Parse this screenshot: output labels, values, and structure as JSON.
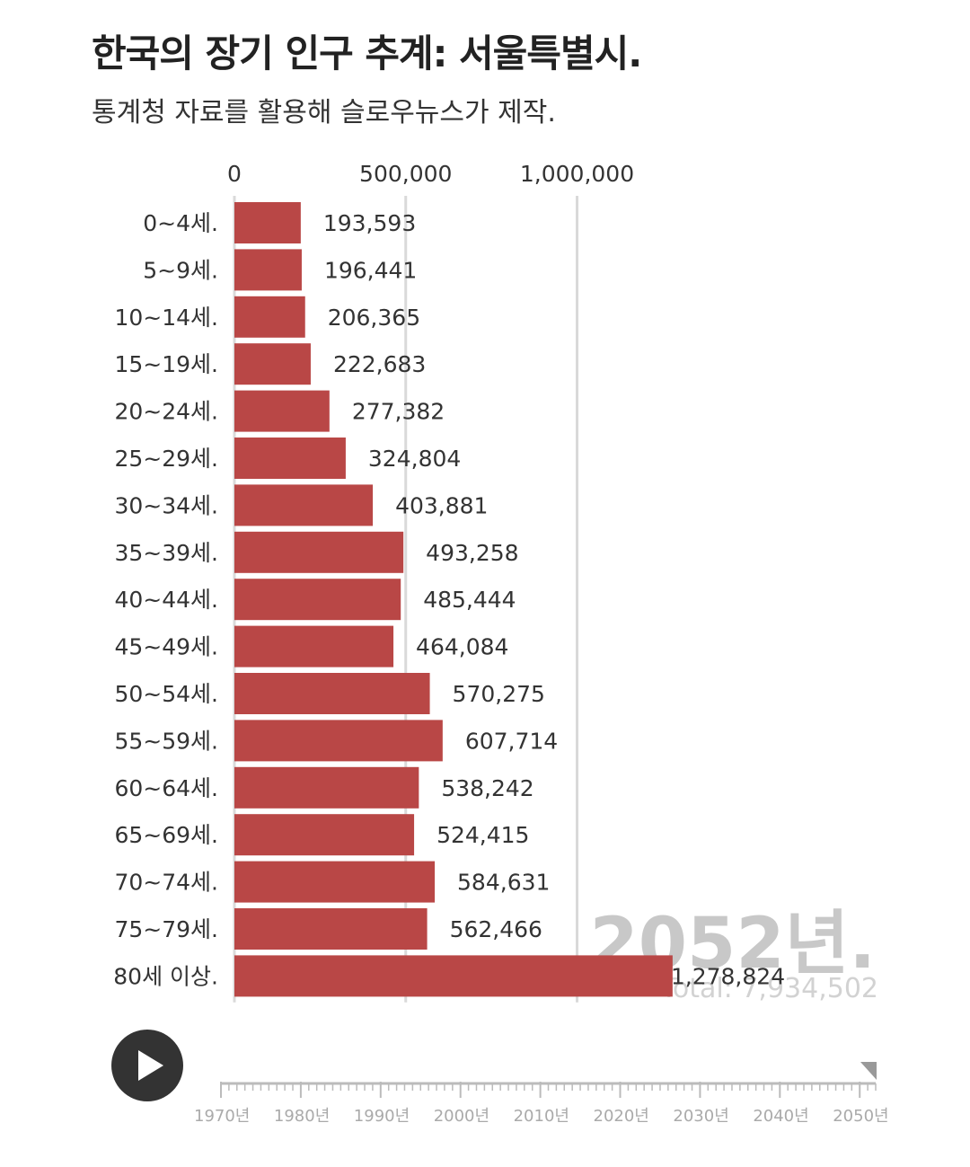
{
  "header": {
    "title": "한국의 장기 인구 추계: 서울특별시.",
    "subtitle": "통계청 자료를 활용해 슬로우뉴스가 제작."
  },
  "overlay": {
    "year": "2052년.",
    "total": "Total: 7,934,502"
  },
  "colors": {
    "bar": "#b94746",
    "grid": "#d9d9d9",
    "play": "#333333"
  },
  "chart_data": {
    "type": "bar",
    "orientation": "horizontal",
    "title": "한국의 장기 인구 추계: 서울특별시.",
    "xlim": [
      0,
      1278824
    ],
    "x_ticks": [
      0,
      500000,
      1000000
    ],
    "x_tick_labels": [
      "0",
      "500,000",
      "1,000,000"
    ],
    "grid": true,
    "categories": [
      "0~4세.",
      "5~9세.",
      "10~14세.",
      "15~19세.",
      "20~24세.",
      "25~29세.",
      "30~34세.",
      "35~39세.",
      "40~44세.",
      "45~49세.",
      "50~54세.",
      "55~59세.",
      "60~64세.",
      "65~69세.",
      "70~74세.",
      "75~79세.",
      "80세 이상."
    ],
    "values": [
      193593,
      196441,
      206365,
      222683,
      277382,
      324804,
      403881,
      493258,
      485444,
      464084,
      570275,
      607714,
      538242,
      524415,
      584631,
      562466,
      1278824
    ],
    "value_labels": [
      "193,593",
      "196,441",
      "206,365",
      "222,683",
      "277,382",
      "324,804",
      "403,881",
      "493,258",
      "485,444",
      "464,084",
      "570,275",
      "607,714",
      "538,242",
      "524,415",
      "584,631",
      "562,466",
      "1,278,824"
    ]
  },
  "timeline": {
    "labels": [
      "1970년",
      "1980년",
      "1990년",
      "2000년",
      "2010년",
      "2020년",
      "2030년",
      "2040년",
      "2050년"
    ],
    "start_year": 1970,
    "end_year": 2050,
    "current_year": 2052
  },
  "controls": {
    "play_icon": "play-icon"
  }
}
